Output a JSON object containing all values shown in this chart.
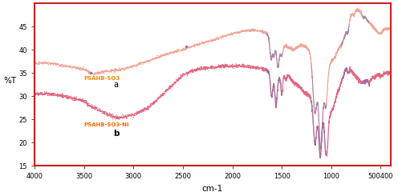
{
  "xlabel": "cm-1",
  "ylabel": "%T",
  "xlim": [
    4000,
    400
  ],
  "ylim": [
    15,
    50
  ],
  "yticks": [
    15,
    20,
    25,
    30,
    35,
    40,
    45
  ],
  "xticks": [
    4000,
    3500,
    3000,
    2500,
    2000,
    1500,
    1000,
    500
  ],
  "xtick_labels": [
    "4000",
    "3500",
    "3000",
    "2500",
    "2000",
    "1500",
    "1000",
    "500400"
  ],
  "label_a": "a",
  "label_b": "b",
  "legend_a": "PSAHB-SO3",
  "legend_b": "PSAHB-SO3-Ni",
  "color_a": "#F0A090",
  "color_b": "#E0607A",
  "color_blue": "#7070BB",
  "background": "#FFFFFF",
  "border_color": "#CC2222",
  "label_a_color": "#FF8800",
  "label_b_color": "#FF6600"
}
